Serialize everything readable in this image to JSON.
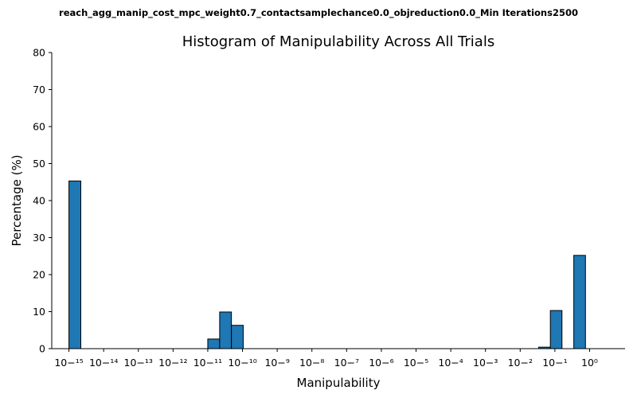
{
  "suptitle": "reach_agg_manip_cost_mpc_weight0.7_contactsamplechance0.0_objreduction0.0_Min Iterations2500",
  "chart_data": {
    "type": "bar",
    "title": "Histogram of Manipulability Across All Trials",
    "xlabel": "Manipulability",
    "ylabel": "Percentage (%)",
    "xscale": "log",
    "xlim": [
      3.2e-16,
      10.5
    ],
    "ylim": [
      0,
      80
    ],
    "yticks": [
      0,
      10,
      20,
      30,
      40,
      50,
      60,
      70,
      80
    ],
    "xtick_exponents": [
      -15,
      -14,
      -13,
      -12,
      -11,
      -10,
      -9,
      -8,
      -7,
      -6,
      -5,
      -4,
      -3,
      -2,
      -1,
      0
    ],
    "bar_color": "#1f77b4",
    "edge_color": "#000000",
    "grid": false,
    "bins": [
      {
        "x_start": 1e-15,
        "x_end": 2.2e-15,
        "value": 45.3
      },
      {
        "x_start": 1e-11,
        "x_end": 2.2e-11,
        "value": 2.6
      },
      {
        "x_start": 2.2e-11,
        "x_end": 4.8e-11,
        "value": 9.9
      },
      {
        "x_start": 4.8e-11,
        "x_end": 1.05e-10,
        "value": 6.3
      },
      {
        "x_start": 0.034,
        "x_end": 0.074,
        "value": 0.4
      },
      {
        "x_start": 0.074,
        "x_end": 0.16,
        "value": 10.3
      },
      {
        "x_start": 0.35,
        "x_end": 0.76,
        "value": 25.2
      }
    ]
  }
}
